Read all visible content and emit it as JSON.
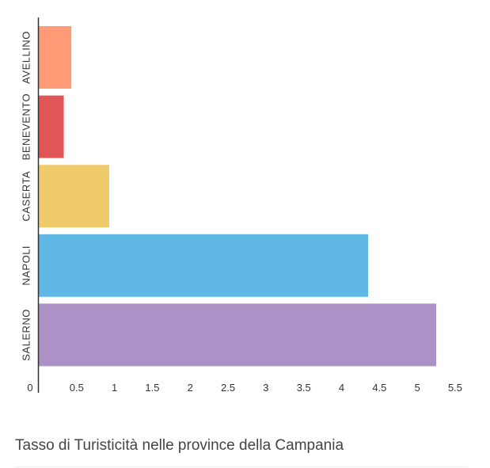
{
  "caption": "Tasso di Turisticità nelle province della Campania",
  "chart_data": {
    "type": "bar",
    "orientation": "horizontal",
    "title": "",
    "xlabel": "",
    "ylabel": "",
    "categories": [
      "AVELLINO",
      "BENEVENTO",
      "CASERTA",
      "NAPOLI",
      "SALERNO"
    ],
    "values": [
      0.43,
      0.33,
      0.93,
      4.35,
      5.25
    ],
    "colors": [
      "#FF9B77",
      "#E05657",
      "#F0CB6C",
      "#5EB7E5",
      "#AB91C5"
    ],
    "xlim": [
      0,
      5.5
    ],
    "xticks": [
      0,
      0.5,
      1,
      1.5,
      2,
      2.5,
      3,
      3.5,
      4,
      4.5,
      5,
      5.5
    ],
    "xtick_labels": [
      "0",
      "0.5",
      "1",
      "1.5",
      "2",
      "2.5",
      "3",
      "3.5",
      "4",
      "4.5",
      "5",
      "5.5"
    ],
    "grid": false,
    "legend": "none"
  }
}
